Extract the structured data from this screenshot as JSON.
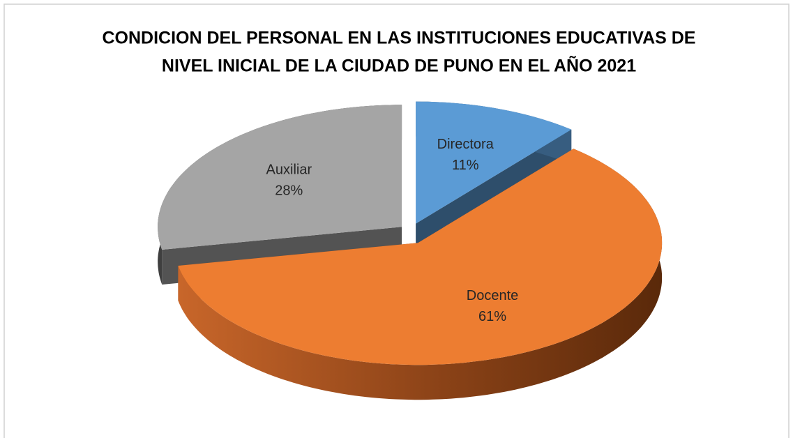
{
  "chart_data": {
    "type": "pie3d",
    "title": [
      "CONDICION DEL PERSONAL EN LAS INSTITUCIONES EDUCATIVAS DE",
      "NIVEL INICIAL DE LA CIUDAD DE  PUNO EN EL AÑO 2021"
    ],
    "categories": [
      "Directora",
      "Docente",
      "Auxiliar"
    ],
    "values": [
      11,
      61,
      28
    ],
    "value_labels": [
      "11%",
      "61%",
      "28%"
    ],
    "colors": [
      "#5b9bd5",
      "#ed7d31",
      "#a5a5a5"
    ]
  }
}
